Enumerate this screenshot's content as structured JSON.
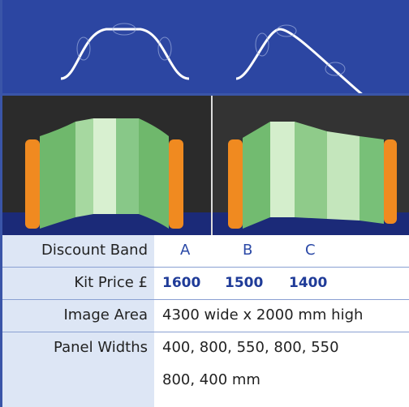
{
  "table": {
    "rows": [
      {
        "label": "Discount Band",
        "values": [
          "A",
          "B",
          "C"
        ]
      },
      {
        "label": "Kit Price £",
        "values": [
          1600,
          1500,
          1400
        ]
      },
      {
        "label": "Image Area",
        "values": [
          "4300 wide x 2000 mm high"
        ]
      },
      {
        "label": "Panel Widths",
        "values": [
          "400, 800, 550, 800, 550",
          "800, 400 mm"
        ]
      }
    ]
  }
}
